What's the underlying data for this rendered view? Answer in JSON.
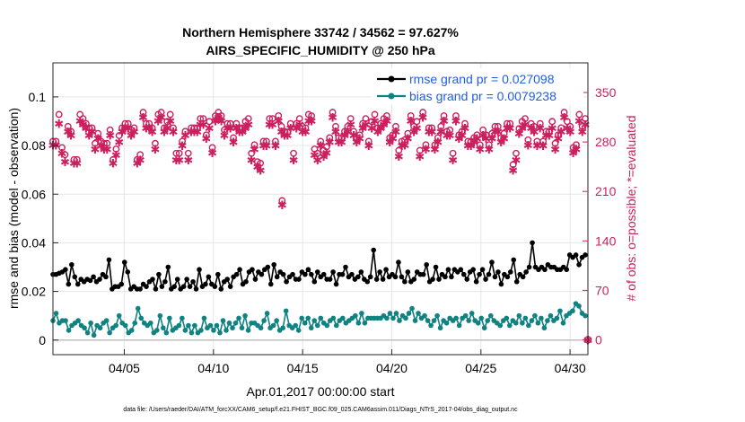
{
  "chart_data": {
    "type": "line",
    "title_line1": "Northern Hemisphere 33742 / 34562 = 97.627%",
    "title_line2": "AIRS_SPECIFIC_HUMIDITY @ 250 hPa",
    "xlabel": "Apr.01,2017 00:00:00 start",
    "ylabel": "rmse and bias (model - observation)",
    "ylabel_right": "# of obs: o=possible; *=evaluated",
    "x_ticks": [
      "04/05",
      "04/10",
      "04/15",
      "04/20",
      "04/25",
      "04/30"
    ],
    "x_tick_days": [
      5,
      10,
      15,
      20,
      25,
      30
    ],
    "xlim": [
      1.0,
      31.0
    ],
    "y_ticks": [
      "0",
      "0.02",
      "0.04",
      "0.06",
      "0.08",
      "0.1"
    ],
    "ylim": [
      -0.006,
      0.114
    ],
    "y2_ticks": [
      "0",
      "70",
      "140",
      "210",
      "280",
      "350"
    ],
    "y2lim": [
      -21,
      392
    ],
    "footnote": "data file: /Users/raeder/DAI/ATM_forcXX/CAM6_setup/f.e21.FHIST_BGC.f09_025.CAM6assim.011/Diags_NTrS_2017-04/obs_diag_output.nc",
    "colors": {
      "rmse": "#000000",
      "bias": "#0f8282",
      "obs": "#cc1f5e",
      "legend_text": "#1f5ee6"
    },
    "series": [
      {
        "name": "rmse grand pr = 0.027098",
        "values": [
          0.027,
          0.027,
          0.0275,
          0.028,
          0.029,
          0.023,
          0.031,
          0.026,
          0.023,
          0.025,
          0.024,
          0.025,
          0.0245,
          0.026,
          0.024,
          0.025,
          0.027,
          0.026,
          0.033,
          0.021,
          0.022,
          0.022,
          0.023,
          0.032,
          0.028,
          0.021,
          0.022,
          0.021,
          0.021,
          0.023,
          0.022,
          0.024,
          0.025,
          0.021,
          0.027,
          0.022,
          0.024,
          0.03,
          0.021,
          0.022,
          0.025,
          0.021,
          0.022,
          0.025,
          0.022,
          0.024,
          0.021,
          0.029,
          0.022,
          0.023,
          0.026,
          0.023,
          0.022,
          0.027,
          0.021,
          0.024,
          0.025,
          0.022,
          0.026,
          0.027,
          0.029,
          0.023,
          0.024,
          0.028,
          0.029,
          0.025,
          0.028,
          0.027,
          0.029,
          0.03,
          0.023,
          0.031,
          0.026,
          0.028,
          0.027,
          0.024,
          0.026,
          0.027,
          0.025,
          0.025,
          0.028,
          0.027,
          0.029,
          0.027,
          0.024,
          0.028,
          0.026,
          0.027,
          0.025,
          0.025,
          0.028,
          0.023,
          0.027,
          0.027,
          0.03,
          0.026,
          0.027,
          0.025,
          0.026,
          0.028,
          0.025,
          0.024,
          0.026,
          0.037,
          0.025,
          0.028,
          0.025,
          0.029,
          0.026,
          0.027,
          0.026,
          0.032,
          0.026,
          0.024,
          0.028,
          0.024,
          0.025,
          0.028,
          0.027,
          0.027,
          0.031,
          0.024,
          0.025,
          0.03,
          0.025,
          0.027,
          0.026,
          0.029,
          0.026,
          0.029,
          0.028,
          0.029,
          0.027,
          0.025,
          0.028,
          0.029,
          0.024,
          0.027,
          0.029,
          0.025,
          0.027,
          0.032,
          0.026,
          0.028,
          0.023,
          0.027,
          0.026,
          0.028,
          0.033,
          0.024,
          0.027,
          0.026,
          0.028,
          0.03,
          0.04,
          0.03,
          0.029,
          0.03,
          0.029,
          0.031,
          0.03,
          0.03,
          0.029,
          0.029,
          0.03,
          0.029,
          0.035,
          0.034,
          0.035,
          0.031,
          0.034,
          0.035
        ]
      },
      {
        "name": "bias grand pr = 0.0079238",
        "values": [
          0.008,
          0.011,
          0.007,
          0.008,
          0.008,
          0.004,
          0.006,
          0.007,
          0.008,
          0.006,
          0.005,
          0.003,
          0.007,
          0.002,
          0.006,
          0.005,
          0.007,
          0.008,
          0.003,
          0.005,
          0.006,
          0.01,
          0.007,
          0.006,
          0.003,
          0.004,
          0.007,
          0.013,
          0.009,
          0.007,
          0.006,
          0.007,
          0.003,
          0.004,
          0.01,
          0.005,
          0.003,
          0.009,
          0.004,
          0.005,
          0.006,
          0.009,
          0.004,
          0.006,
          0.003,
          0.006,
          0.003,
          0.004,
          0.009,
          0.005,
          0.006,
          0.004,
          0.006,
          0.003,
          0.008,
          0.004,
          0.007,
          0.005,
          0.007,
          0.009,
          0.005,
          0.01,
          0.004,
          0.007,
          0.007,
          0.006,
          0.005,
          0.008,
          0.011,
          0.005,
          0.006,
          0.008,
          0.004,
          0.005,
          0.012,
          0.006,
          0.005,
          0.006,
          0.004,
          0.009,
          0.007,
          0.009,
          0.005,
          0.008,
          0.006,
          0.009,
          0.007,
          0.006,
          0.008,
          0.009,
          0.006,
          0.008,
          0.009,
          0.007,
          0.008,
          0.009,
          0.01,
          0.007,
          0.011,
          0.007,
          0.009,
          0.009,
          0.009,
          0.009,
          0.009,
          0.01,
          0.009,
          0.011,
          0.009,
          0.011,
          0.008,
          0.01,
          0.009,
          0.011,
          0.013,
          0.008,
          0.011,
          0.009,
          0.01,
          0.008,
          0.006,
          0.008,
          0.01,
          0.005,
          0.008,
          0.007,
          0.009,
          0.008,
          0.009,
          0.006,
          0.009,
          0.01,
          0.008,
          0.011,
          0.008,
          0.007,
          0.009,
          0.005,
          0.008,
          0.01,
          0.008,
          0.007,
          0.006,
          0.008,
          0.009,
          0.006,
          0.008,
          0.007,
          0.01,
          0.007,
          0.009,
          0.006,
          0.008,
          0.01,
          0.007,
          0.009,
          0.005,
          0.008,
          0.01,
          0.008,
          0.009,
          0.012,
          0.007,
          0.01,
          0.011,
          0.012,
          0.015,
          0.014,
          0.011,
          0.01
        ]
      },
      {
        "name": "obs_possible",
        "axis": "right",
        "values": [
          281,
          281,
          319,
          272,
          262,
          302,
          295,
          255,
          255,
          319,
          313,
          306,
          300,
          300,
          278,
          292,
          281,
          278,
          278,
          297,
          255,
          270,
          289,
          300,
          306,
          306,
          297,
          300,
          255,
          262,
          322,
          306,
          306,
          300,
          278,
          319,
          322,
          300,
          309,
          319,
          300,
          264,
          264,
          281,
          295,
          264,
          300,
          300,
          300,
          313,
          313,
          290,
          309,
          272,
          317,
          322,
          317,
          297,
          306,
          306,
          286,
          306,
          300,
          300,
          309,
          313,
          264,
          276,
          252,
          250,
          281,
          281,
          313,
          313,
          281,
          317,
          302,
          295,
          294,
          306,
          264,
          306,
          313,
          302,
          300,
          319,
          317,
          270,
          264,
          281,
          268,
          273,
          286,
          322,
          302,
          286,
          286,
          295,
          302,
          313,
          295,
          286,
          290,
          306,
          313,
          281,
          309,
          319,
          300,
          306,
          313,
          317,
          286,
          290,
          302,
          268,
          281,
          283,
          292,
          317,
          302,
          309,
          268,
          322,
          276,
          300,
          300,
          276,
          286,
          302,
          317,
          295,
          297,
          264,
          317,
          290,
          295,
          306,
          281,
          281,
          286,
          290,
          276,
          297,
          290,
          276,
          292,
          302,
          302,
          286,
          292,
          306,
          306,
          248,
          264,
          299,
          309,
          313,
          283,
          306,
          302,
          281,
          306,
          281,
          295,
          295,
          309,
          278,
          290,
          300,
          322,
          309,
          302,
          272,
          276,
          319,
          302,
          313
        ]
      },
      {
        "name": "obs_evaluated",
        "axis": "right",
        "values": [
          276,
          276,
          306,
          264,
          252,
          295,
          290,
          250,
          250,
          310,
          305,
          300,
          290,
          295,
          270,
          285,
          275,
          270,
          270,
          290,
          250,
          262,
          280,
          295,
          300,
          300,
          290,
          295,
          250,
          255,
          315,
          300,
          300,
          295,
          270,
          310,
          315,
          295,
          300,
          310,
          295,
          255,
          255,
          275,
          290,
          255,
          295,
          295,
          295,
          305,
          305,
          285,
          300,
          265,
          310,
          315,
          310,
          290,
          300,
          300,
          280,
          300,
          295,
          295,
          300,
          305,
          255,
          270,
          245,
          240,
          275,
          275,
          305,
          305,
          275,
          310,
          295,
          290,
          290,
          300,
          255,
          300,
          305,
          295,
          295,
          310,
          310,
          262,
          255,
          275,
          260,
          265,
          280,
          315,
          295,
          280,
          280,
          290,
          295,
          305,
          290,
          280,
          285,
          300,
          305,
          275,
          300,
          310,
          295,
          300,
          305,
          310,
          280,
          285,
          295,
          260,
          275,
          276,
          285,
          310,
          295,
          300,
          260,
          315,
          270,
          295,
          295,
          270,
          280,
          295,
          310,
          290,
          290,
          255,
          310,
          285,
          290,
          300,
          275,
          275,
          280,
          285,
          270,
          290,
          285,
          270,
          285,
          295,
          295,
          280,
          285,
          300,
          300,
          240,
          255,
          292,
          300,
          305,
          276,
          300,
          295,
          275,
          300,
          275,
          290,
          290,
          300,
          270,
          285,
          295,
          315,
          300,
          295,
          265,
          270,
          310,
          295,
          305
        ]
      }
    ],
    "outlier": {
      "day": 13.85,
      "possible": 197,
      "evaluated": 191
    },
    "zero_marker": {
      "day": 31.0,
      "value": 0
    }
  }
}
